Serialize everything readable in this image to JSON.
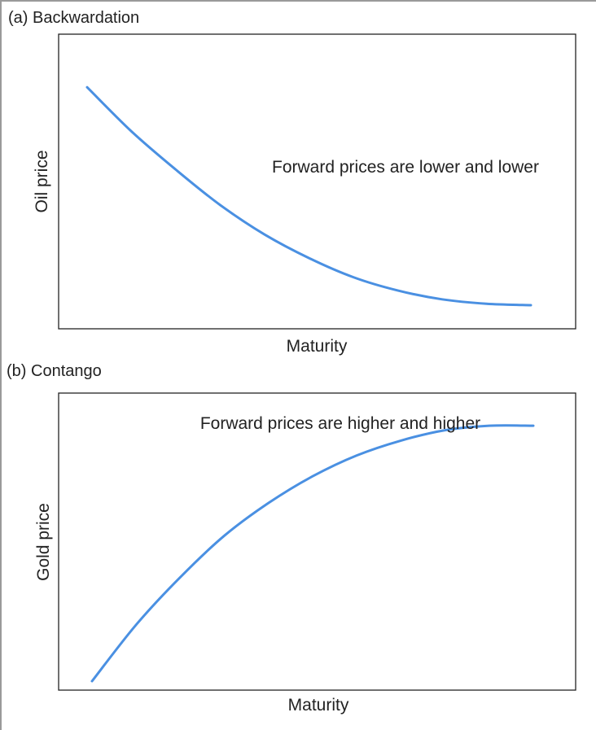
{
  "style": {
    "line_color": "#4a90e2"
  },
  "chart_data": [
    {
      "type": "line",
      "title": "(a) Backwardation",
      "xlabel": "Maturity",
      "ylabel": "Oil price",
      "annotation": "Forward prices are lower and lower",
      "grid": false,
      "xlim": [
        0,
        1
      ],
      "ylim": [
        0,
        1
      ],
      "x": [
        0.0,
        0.1,
        0.2,
        0.3,
        0.4,
        0.5,
        0.6,
        0.7,
        0.8,
        0.9,
        1.0
      ],
      "y": [
        0.82,
        0.67,
        0.54,
        0.42,
        0.32,
        0.24,
        0.175,
        0.13,
        0.1,
        0.085,
        0.08
      ]
    },
    {
      "type": "line",
      "title": "(b) Contango",
      "xlabel": "Maturity",
      "ylabel": "Gold price",
      "annotation": "Forward prices are higher and higher",
      "grid": false,
      "xlim": [
        0,
        1
      ],
      "ylim": [
        0,
        1
      ],
      "x": [
        0.0,
        0.1,
        0.2,
        0.3,
        0.4,
        0.5,
        0.6,
        0.7,
        0.8,
        0.9,
        1.0
      ],
      "y": [
        0.03,
        0.22,
        0.38,
        0.52,
        0.63,
        0.72,
        0.79,
        0.84,
        0.875,
        0.89,
        0.89
      ]
    }
  ]
}
